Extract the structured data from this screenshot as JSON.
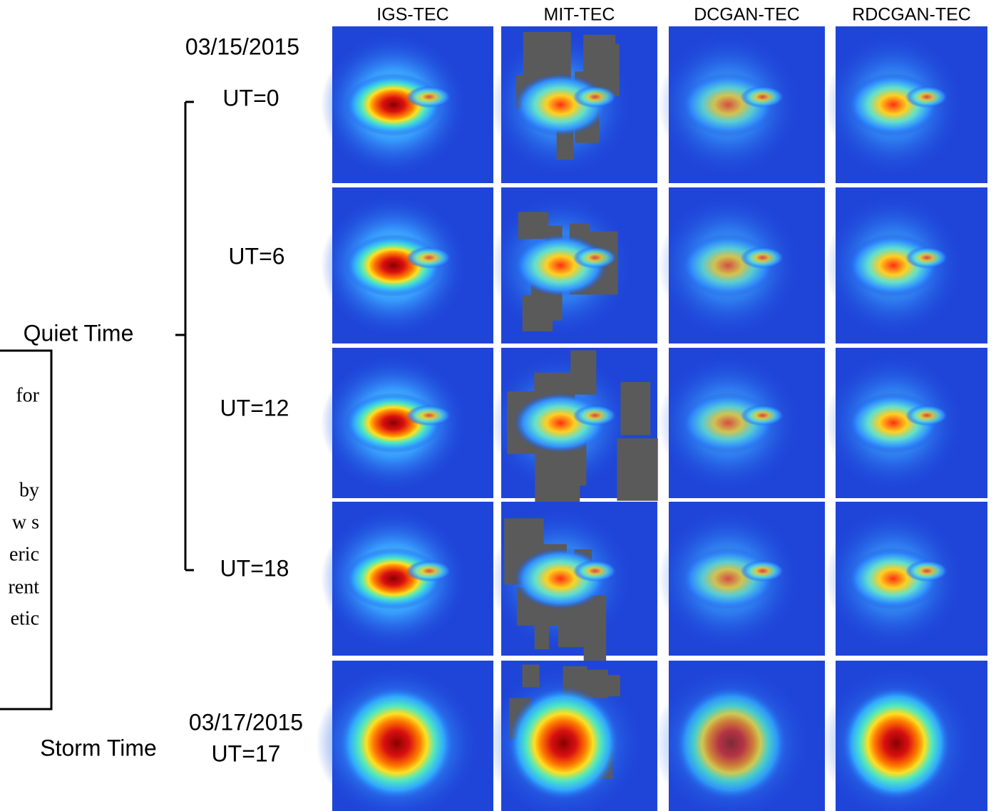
{
  "columns": [
    "IGS-TEC",
    "MIT-TEC",
    "DCGAN-TEC",
    "RDCGAN-TEC"
  ],
  "date_top": "03/15/2015",
  "rows": [
    "UT=0",
    "UT=6",
    "UT=12",
    "UT=18",
    "UT=17"
  ],
  "date_bottom": "03/17/2015",
  "groups": [
    "Quiet Time",
    "Storm Time"
  ],
  "caption_fragments": [
    "for",
    "by",
    "w s",
    "eric",
    "rent",
    "etic"
  ]
}
